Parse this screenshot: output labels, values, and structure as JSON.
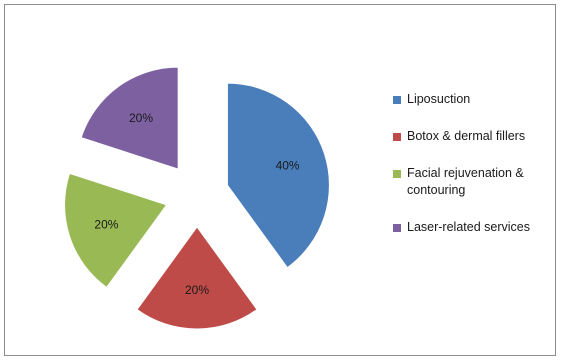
{
  "chart_data": {
    "type": "pie",
    "title": "",
    "exploded": true,
    "legend_position": "right",
    "categories": [
      "Liposuction",
      "Botox & dermal fillers",
      "Facial rejuvenation & contouring",
      "Laser-related services"
    ],
    "values": [
      40,
      20,
      20,
      20
    ],
    "data_labels": [
      "40%",
      "20%",
      "20%",
      "20%"
    ],
    "colors": [
      "#4a7ebb",
      "#be4b48",
      "#98b954",
      "#7d60a0"
    ]
  }
}
